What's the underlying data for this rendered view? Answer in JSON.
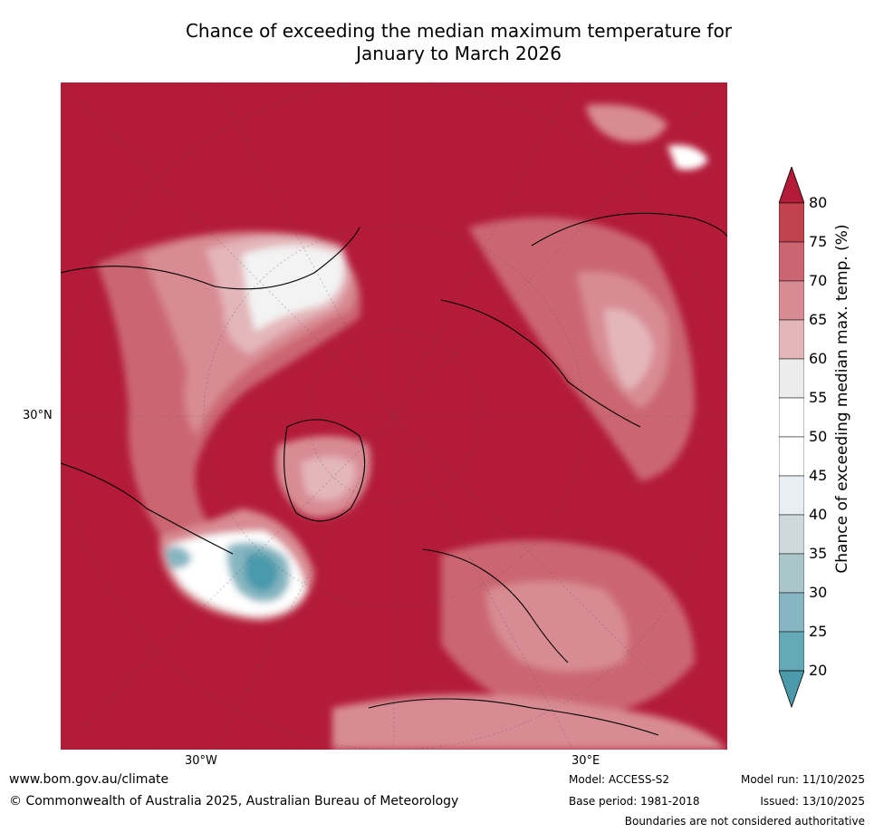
{
  "title_line1": "Chance of exceeding the median maximum temperature for",
  "title_line2": "January to March 2026",
  "axis_labels": {
    "lat": "30°N",
    "lon_west": "30°W",
    "lon_east": "30°E"
  },
  "colorbar": {
    "title": "Chance of exceeding median max. temp. (%)",
    "ticks": [
      "80",
      "75",
      "70",
      "65",
      "60",
      "55",
      "50",
      "45",
      "40",
      "35",
      "30",
      "25",
      "20"
    ],
    "colors": [
      "#b31b39",
      "#c0434f",
      "#cb6670",
      "#d88b93",
      "#e3b6ba",
      "#ececec",
      "#ffffff",
      "#ffffff",
      "#e8eef1",
      "#cfd9dc",
      "#aac6ca",
      "#86b6c1",
      "#65a8b6",
      "#4a9aac"
    ]
  },
  "footer": {
    "website": "www.bom.gov.au/climate",
    "copyright": "© Commonwealth of Australia 2025, Australian Bureau of Meteorology",
    "model": "Model: ACCESS-S2",
    "base_period": "Base period: 1981-2018",
    "model_run": "Model run: 11/10/2025",
    "issued": "Issued: 13/10/2025",
    "disclaimer": "Boundaries are not considered authoritative"
  }
}
